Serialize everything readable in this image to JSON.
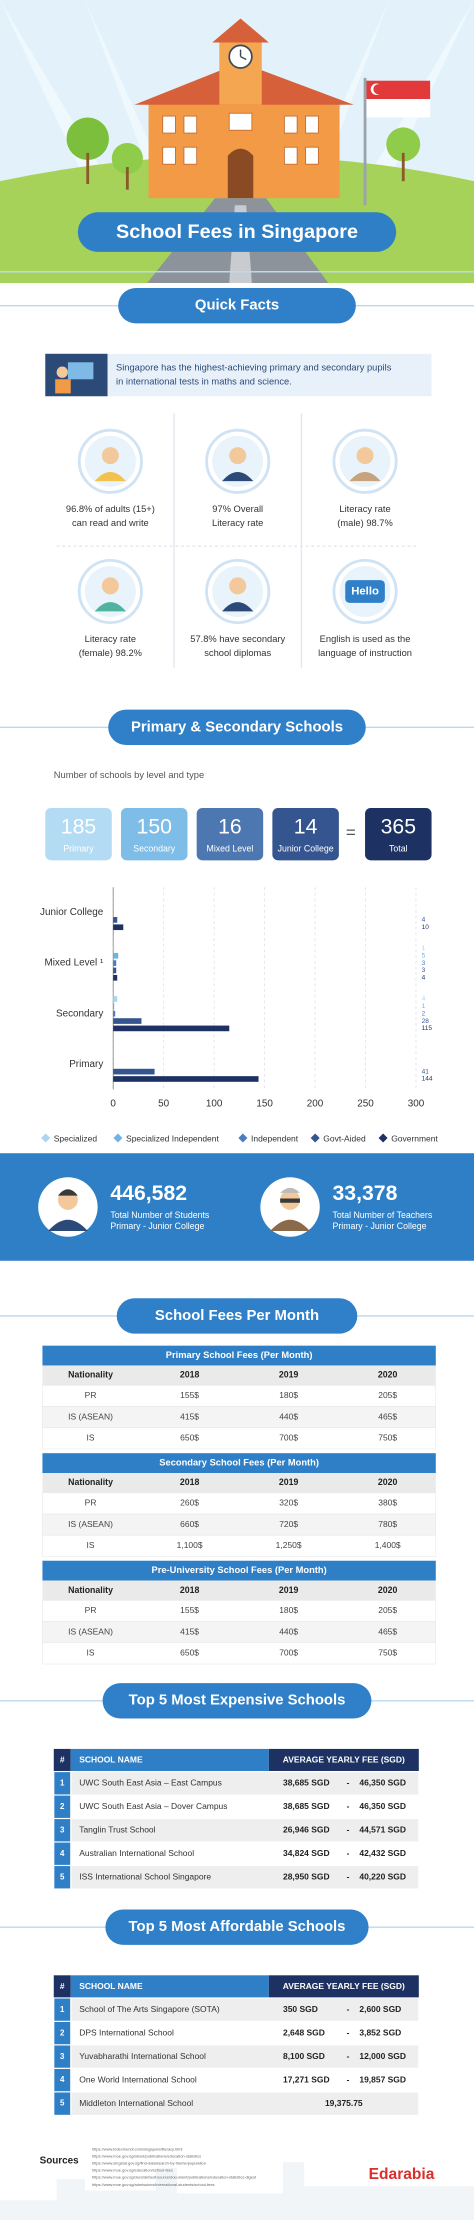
{
  "header": {
    "title": "School Fees in Singapore"
  },
  "quick_facts": {
    "heading": "Quick Facts",
    "intro": [
      "Singapore has the highest-achieving primary and secondary pupils",
      "in international tests in maths and science."
    ],
    "facts": [
      [
        "96.8% of adults (15+)",
        "can read and write"
      ],
      [
        "97% Overall",
        "Literacy rate"
      ],
      [
        "Literacy rate",
        "(male) 98.7%"
      ],
      [
        "Literacy rate",
        "(female) 98.2%"
      ],
      [
        "57.8% have secondary",
        "school diplomas"
      ],
      [
        "English is used as the",
        "language of instruction"
      ]
    ],
    "icon_text": "Hello"
  },
  "schools": {
    "heading": "Primary & Secondary Schools",
    "subtitle": "Number of schools by level and type",
    "tiles": [
      {
        "value": "185",
        "label": "Primary",
        "color": "#b3dcf4"
      },
      {
        "value": "150",
        "label": "Secondary",
        "color": "#7dbde8"
      },
      {
        "value": "16",
        "label": "Mixed Level",
        "color": "#4d77b0"
      },
      {
        "value": "14",
        "label": "Junior College",
        "color": "#34558f"
      }
    ],
    "equals": "=",
    "total": {
      "value": "365",
      "label": "Total",
      "color": "#1d3263"
    }
  },
  "chart_data": {
    "type": "bar",
    "orientation": "horizontal",
    "categories": [
      "Junior College",
      "Mixed Level ¹",
      "Secondary",
      "Primary"
    ],
    "series": [
      {
        "name": "Specialized",
        "color": "#a9d6f2",
        "values": [
          null,
          1,
          4,
          null
        ]
      },
      {
        "name": "Specialized Independent",
        "color": "#6db3e3",
        "values": [
          null,
          5,
          1,
          null
        ]
      },
      {
        "name": "Independent",
        "color": "#4a7cbf",
        "values": [
          null,
          3,
          2,
          null
        ]
      },
      {
        "name": "Govt-Aided",
        "color": "#34558f",
        "values": [
          4,
          3,
          28,
          41
        ]
      },
      {
        "name": "Government",
        "color": "#1d3263",
        "values": [
          10,
          4,
          115,
          144
        ]
      }
    ],
    "xlim": [
      0,
      300
    ],
    "xticks": [
      0,
      50,
      100,
      150,
      200,
      250,
      300
    ],
    "grid": true
  },
  "stats": [
    {
      "value": "446,582",
      "label": "Total Number of Students",
      "sub": "Primary - Junior College"
    },
    {
      "value": "33,378",
      "label": "Total Number of Teachers",
      "sub": "Primary - Junior College"
    }
  ],
  "fees": {
    "heading": "School Fees Per Month",
    "tables": [
      {
        "title": "Primary School Fees (Per Month)",
        "columns": [
          "Nationality",
          "2018",
          "2019",
          "2020"
        ],
        "rows": [
          [
            "PR",
            "155$",
            "180$",
            "205$"
          ],
          [
            "IS (ASEAN)",
            "415$",
            "440$",
            "465$"
          ],
          [
            "IS",
            "650$",
            "700$",
            "750$"
          ]
        ]
      },
      {
        "title": "Secondary School Fees (Per Month)",
        "columns": [
          "Nationality",
          "2018",
          "2019",
          "2020"
        ],
        "rows": [
          [
            "PR",
            "260$",
            "320$",
            "380$"
          ],
          [
            "IS (ASEAN)",
            "660$",
            "720$",
            "780$"
          ],
          [
            "IS",
            "1,100$",
            "1,250$",
            "1,400$"
          ]
        ]
      },
      {
        "title": "Pre-University School Fees (Per Month)",
        "columns": [
          "Nationality",
          "2018",
          "2019",
          "2020"
        ],
        "rows": [
          [
            "PR",
            "155$",
            "180$",
            "205$"
          ],
          [
            "IS (ASEAN)",
            "415$",
            "440$",
            "465$"
          ],
          [
            "IS",
            "650$",
            "700$",
            "750$"
          ]
        ]
      }
    ]
  },
  "expensive": {
    "heading": "Top 5 Most Expensive Schools",
    "columns": [
      "#",
      "SCHOOL NAME",
      "AVERAGE YEARLY FEE (SGD)"
    ],
    "rows": [
      [
        "1",
        "UWC South East Asia – East Campus",
        "38,685 SGD",
        "-",
        "46,350 SGD"
      ],
      [
        "2",
        "UWC South East Asia – Dover Campus",
        "38,685 SGD",
        "-",
        "46,350 SGD"
      ],
      [
        "3",
        "Tanglin Trust School",
        "26,946 SGD",
        "-",
        "44,571 SGD"
      ],
      [
        "4",
        "Australian International School",
        "34,824 SGD",
        "-",
        "42,432 SGD"
      ],
      [
        "5",
        "ISS International School Singapore",
        "28,950 SGD",
        "-",
        "40,220 SGD"
      ]
    ]
  },
  "affordable": {
    "heading": "Top 5 Most Affordable Schools",
    "columns": [
      "#",
      "SCHOOL NAME",
      "AVERAGE YEARLY FEE (SGD)"
    ],
    "rows": [
      [
        "1",
        "School of The Arts Singapore (SOTA)",
        "350 SGD",
        "-",
        "2,600 SGD"
      ],
      [
        "2",
        "DPS International School",
        "2,648 SGD",
        "-",
        "3,852 SGD"
      ],
      [
        "3",
        "Yuvabharathi International School",
        "8,100 SGD",
        "-",
        "12,000 SGD"
      ],
      [
        "4",
        "One World International School",
        "17,271 SGD",
        "-",
        "19,857 SGD"
      ],
      [
        "5",
        "Middleton International School",
        "19,375.75"
      ]
    ]
  },
  "sources": {
    "label": "Sources",
    "links": [
      "https://www.indexmundi.com/singapore/literacy.html",
      "https://www.moe.gov.sg/about/publications/education-statistics",
      "https://www.singstat.gov.sg/find-data/search-by-theme/population",
      "https://www.moe.gov.sg/education/school-fees",
      "https://www.moe.gov.sg/docs/default-source/document/publications/education-statistics-digest",
      "https://www.moe.gov.sg/admissions/international-students/school-fees"
    ],
    "brand": "Edarabia"
  }
}
